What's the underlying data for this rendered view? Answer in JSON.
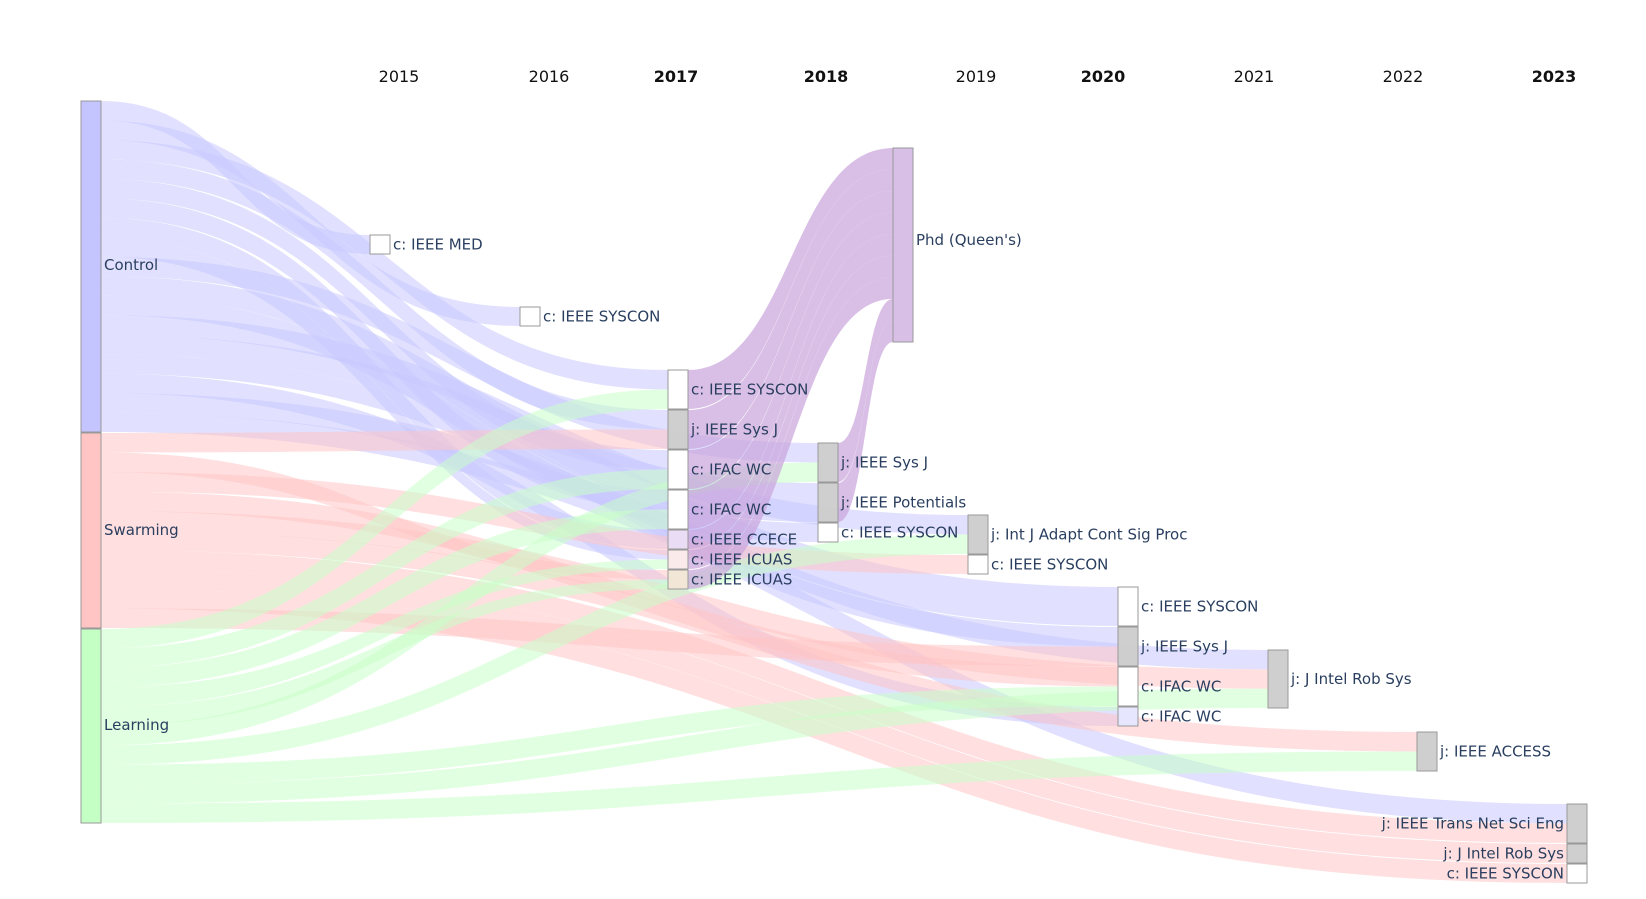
{
  "chart_data": {
    "type": "sankey",
    "years": [
      {
        "label": "2015",
        "bold": false
      },
      {
        "label": "2016",
        "bold": false
      },
      {
        "label": "2017",
        "bold": true
      },
      {
        "label": "2018",
        "bold": true
      },
      {
        "label": "2019",
        "bold": false
      },
      {
        "label": "2020",
        "bold": true
      },
      {
        "label": "2021",
        "bold": false
      },
      {
        "label": "2022",
        "bold": false
      },
      {
        "label": "2023",
        "bold": true
      }
    ],
    "colors": {
      "control": "#c4c4ff",
      "swarming": "#ffc4c4",
      "learning": "#c4ffc4",
      "phd": "#d8bfe6",
      "journal": "#cccccc",
      "conference": "#ffffff",
      "ifac_2020b": "#e6e6ff",
      "ccece": "#eadcf5",
      "icuas_a": "#fbeaea",
      "icuas_b": "#f2e6d6",
      "flow_control": "#c8c8ff",
      "flow_swarming": "#ffc4c4",
      "flow_learning": "#c8ffc8",
      "flow_phd": "#c9a4dc"
    },
    "nodes": [
      {
        "id": "control",
        "label": "Control",
        "color": "control",
        "value": 17
      },
      {
        "id": "swarming",
        "label": "Swarming",
        "color": "swarming",
        "value": 10
      },
      {
        "id": "learning",
        "label": "Learning",
        "color": "learning",
        "value": 10
      },
      {
        "id": "med2015",
        "label": "c: IEEE MED",
        "color": "conference",
        "year": "2015"
      },
      {
        "id": "syscon2016",
        "label": "c: IEEE SYSCON",
        "color": "conference",
        "year": "2016"
      },
      {
        "id": "syscon2017",
        "label": "c: IEEE SYSCON",
        "color": "conference",
        "year": "2017"
      },
      {
        "id": "sysj2017",
        "label": "j: IEEE Sys J",
        "color": "journal",
        "year": "2017"
      },
      {
        "id": "ifac2017a",
        "label": "c: IFAC WC",
        "color": "conference",
        "year": "2017"
      },
      {
        "id": "ifac2017b",
        "label": "c: IFAC WC",
        "color": "conference",
        "year": "2017"
      },
      {
        "id": "ccece2017",
        "label": "c: IEEE CCECE",
        "color": "ccece",
        "year": "2017"
      },
      {
        "id": "icuas2017a",
        "label": "c: IEEE ICUAS",
        "color": "icuas_a",
        "year": "2017"
      },
      {
        "id": "icuas2017b",
        "label": "c: IEEE ICUAS",
        "color": "icuas_b",
        "year": "2017"
      },
      {
        "id": "phd",
        "label": "Phd (Queen's)",
        "color": "phd",
        "year": "2018"
      },
      {
        "id": "sysj2018",
        "label": "j: IEEE Sys J",
        "color": "journal",
        "year": "2018"
      },
      {
        "id": "potentials2018",
        "label": "j: IEEE Potentials",
        "color": "journal",
        "year": "2018"
      },
      {
        "id": "syscon2018",
        "label": "c: IEEE SYSCON",
        "color": "conference",
        "year": "2018"
      },
      {
        "id": "adapt2019",
        "label": "j: Int J Adapt Cont Sig Proc",
        "color": "journal",
        "year": "2019"
      },
      {
        "id": "syscon2019",
        "label": "c: IEEE SYSCON",
        "color": "conference",
        "year": "2019"
      },
      {
        "id": "syscon2020",
        "label": "c: IEEE SYSCON",
        "color": "conference",
        "year": "2020"
      },
      {
        "id": "sysj2020",
        "label": "j: IEEE Sys J",
        "color": "journal",
        "year": "2020"
      },
      {
        "id": "ifac2020a",
        "label": "c: IFAC WC",
        "color": "conference",
        "year": "2020"
      },
      {
        "id": "ifac2020b",
        "label": "c: IFAC WC",
        "color": "ifac_2020b",
        "year": "2020"
      },
      {
        "id": "jirs2021",
        "label": "j: J Intel Rob Sys",
        "color": "journal",
        "year": "2021"
      },
      {
        "id": "access2022",
        "label": "j: IEEE ACCESS",
        "color": "journal",
        "year": "2022"
      },
      {
        "id": "tnse2023",
        "label": "j: IEEE Trans Net Sci Eng",
        "color": "journal",
        "year": "2023"
      },
      {
        "id": "jirs2023",
        "label": "j: J Intel Rob Sys",
        "color": "journal",
        "year": "2023"
      },
      {
        "id": "syscon2023",
        "label": "c: IEEE SYSCON",
        "color": "conference",
        "year": "2023"
      }
    ],
    "links": [
      {
        "source": "control",
        "target": "med2015",
        "value": 1
      },
      {
        "source": "control",
        "target": "syscon2016",
        "value": 1
      },
      {
        "source": "control",
        "target": "syscon2017",
        "value": 1
      },
      {
        "source": "control",
        "target": "sysj2017",
        "value": 1
      },
      {
        "source": "control",
        "target": "ifac2017a",
        "value": 1
      },
      {
        "source": "control",
        "target": "ifac2017b",
        "value": 1
      },
      {
        "source": "control",
        "target": "ccece2017",
        "value": 1
      },
      {
        "source": "control",
        "target": "icuas2017a",
        "value": 1
      },
      {
        "source": "control",
        "target": "sysj2018",
        "value": 1
      },
      {
        "source": "control",
        "target": "potentials2018",
        "value": 1
      },
      {
        "source": "control",
        "target": "syscon2018",
        "value": 1
      },
      {
        "source": "control",
        "target": "adapt2019",
        "value": 1
      },
      {
        "source": "control",
        "target": "syscon2020",
        "value": 1
      },
      {
        "source": "control",
        "target": "sysj2020",
        "value": 1
      },
      {
        "source": "control",
        "target": "ifac2020b",
        "value": 1
      },
      {
        "source": "control",
        "target": "jirs2021",
        "value": 1
      },
      {
        "source": "control",
        "target": "tnse2023",
        "value": 1
      },
      {
        "source": "swarming",
        "target": "sysj2017",
        "value": 1
      },
      {
        "source": "swarming",
        "target": "icuas2017b",
        "value": 1
      },
      {
        "source": "swarming",
        "target": "syscon2019",
        "value": 1
      },
      {
        "source": "swarming",
        "target": "ifac2020a",
        "value": 1
      },
      {
        "source": "swarming",
        "target": "jirs2021",
        "value": 1
      },
      {
        "source": "swarming",
        "target": "access2022",
        "value": 1
      },
      {
        "source": "swarming",
        "target": "tnse2023",
        "value": 1
      },
      {
        "source": "swarming",
        "target": "jirs2023",
        "value": 1
      },
      {
        "source": "swarming",
        "target": "syscon2023",
        "value": 1
      },
      {
        "source": "swarming",
        "target": "sysj2020",
        "value": 1
      },
      {
        "source": "learning",
        "target": "syscon2017",
        "value": 1
      },
      {
        "source": "learning",
        "target": "ifac2017a",
        "value": 1
      },
      {
        "source": "learning",
        "target": "ifac2017b",
        "value": 1
      },
      {
        "source": "learning",
        "target": "icuas2017a",
        "value": 1
      },
      {
        "source": "learning",
        "target": "icuas2017b",
        "value": 1
      },
      {
        "source": "learning",
        "target": "sysj2018",
        "value": 1
      },
      {
        "source": "learning",
        "target": "adapt2019",
        "value": 1
      },
      {
        "source": "learning",
        "target": "ifac2020a",
        "value": 1
      },
      {
        "source": "learning",
        "target": "jirs2021",
        "value": 1
      },
      {
        "source": "learning",
        "target": "access2022",
        "value": 1
      },
      {
        "source": "syscon2017",
        "target": "phd",
        "value": 1
      },
      {
        "source": "sysj2017",
        "target": "phd",
        "value": 1
      },
      {
        "source": "ifac2017a",
        "target": "phd",
        "value": 1
      },
      {
        "source": "ifac2017b",
        "target": "phd",
        "value": 1
      },
      {
        "source": "ccece2017",
        "target": "phd",
        "value": 1
      },
      {
        "source": "icuas2017a",
        "target": "phd",
        "value": 1
      },
      {
        "source": "icuas2017b",
        "target": "phd",
        "value": 1
      },
      {
        "source": "sysj2018",
        "target": "phd",
        "value": 1
      },
      {
        "source": "potentials2018",
        "target": "phd",
        "value": 1
      }
    ]
  }
}
